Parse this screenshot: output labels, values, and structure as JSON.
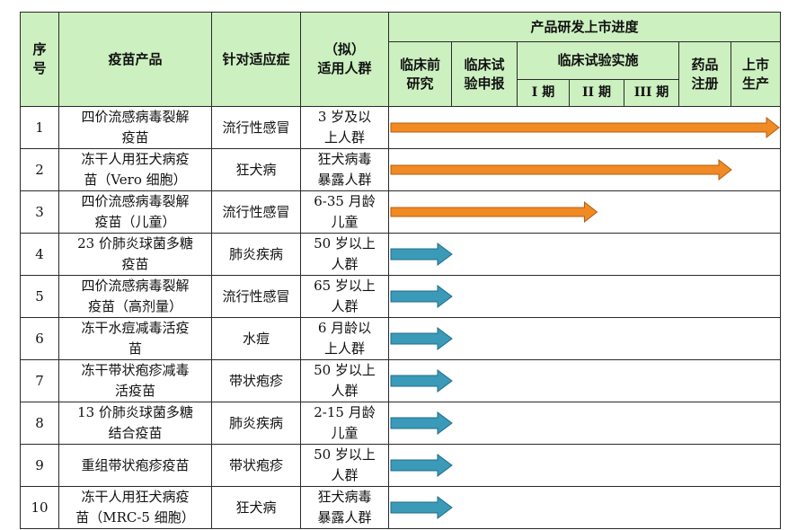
{
  "header": {
    "seq": [
      "序",
      "号"
    ],
    "product": "疫苗产品",
    "indication": "针对适应症",
    "population": [
      "（拟）",
      "适用人群"
    ],
    "progress_group": "产品研发上市进度",
    "stages": [
      {
        "lines": [
          "临床前",
          "研究"
        ]
      },
      {
        "lines": [
          "临床试",
          "验申报"
        ]
      }
    ],
    "trial_group": "临床试验实施",
    "phases": [
      "I 期",
      "II 期",
      "III 期"
    ],
    "stages_after": [
      {
        "lines": [
          "药品",
          "注册"
        ]
      },
      {
        "lines": [
          "上市",
          "生产"
        ]
      }
    ]
  },
  "colors": {
    "header_bg": "#ccf0c0",
    "arrow_orange": "#f08a24",
    "arrow_teal": "#3a9ab8"
  },
  "stage_count": 8,
  "rows": [
    {
      "seq": "1",
      "product": [
        "四价流感病毒裂解",
        "疫苗"
      ],
      "indication": "流行性感冒",
      "population": [
        "3 岁及以",
        "上人群"
      ],
      "reached_stage": 8,
      "arrow_color": "orange"
    },
    {
      "seq": "2",
      "product": [
        "冻干人用狂犬病疫",
        "苗（Vero 细胞）"
      ],
      "indication": "狂犬病",
      "population": [
        "狂犬病毒",
        "暴露人群"
      ],
      "reached_stage": 6,
      "arrow_color": "orange"
    },
    {
      "seq": "3",
      "product": [
        "四价流感病毒裂解",
        "疫苗（儿童）"
      ],
      "indication": "流行性感冒",
      "population": [
        "6-35 月龄",
        "儿童"
      ],
      "reached_stage": 3.5,
      "arrow_color": "orange"
    },
    {
      "seq": "4",
      "product": [
        "23 价肺炎球菌多糖",
        "疫苗"
      ],
      "indication": "肺炎疾病",
      "population": [
        "50 岁以上",
        "人群"
      ],
      "reached_stage": 1,
      "arrow_color": "teal"
    },
    {
      "seq": "5",
      "product": [
        "四价流感病毒裂解",
        "疫苗（高剂量）"
      ],
      "indication": "流行性感冒",
      "population": [
        "65 岁以上",
        "人群"
      ],
      "reached_stage": 1,
      "arrow_color": "teal"
    },
    {
      "seq": "6",
      "product": [
        "冻干水痘减毒活疫",
        "苗"
      ],
      "indication": "水痘",
      "population": [
        "6 月龄以",
        "上人群"
      ],
      "reached_stage": 1,
      "arrow_color": "teal"
    },
    {
      "seq": "7",
      "product": [
        "冻干带状疱疹减毒",
        "活疫苗"
      ],
      "indication": "带状疱疹",
      "population": [
        "50 岁以上",
        "人群"
      ],
      "reached_stage": 1,
      "arrow_color": "teal"
    },
    {
      "seq": "8",
      "product": [
        "13 价肺炎球菌多糖",
        "结合疫苗"
      ],
      "indication": "肺炎疾病",
      "population": [
        "2-15 月龄",
        "儿童"
      ],
      "reached_stage": 1,
      "arrow_color": "teal"
    },
    {
      "seq": "9",
      "product": [
        "重组带状疱疹疫苗"
      ],
      "indication": "带状疱疹",
      "population": [
        "50 岁以上",
        "人群"
      ],
      "reached_stage": 1,
      "arrow_color": "teal"
    },
    {
      "seq": "10",
      "product": [
        "冻干人用狂犬病疫",
        "苗（MRC-5 细胞）"
      ],
      "indication": "狂犬病",
      "population": [
        "狂犬病毒",
        "暴露人群"
      ],
      "reached_stage": 1,
      "arrow_color": "teal"
    }
  ]
}
